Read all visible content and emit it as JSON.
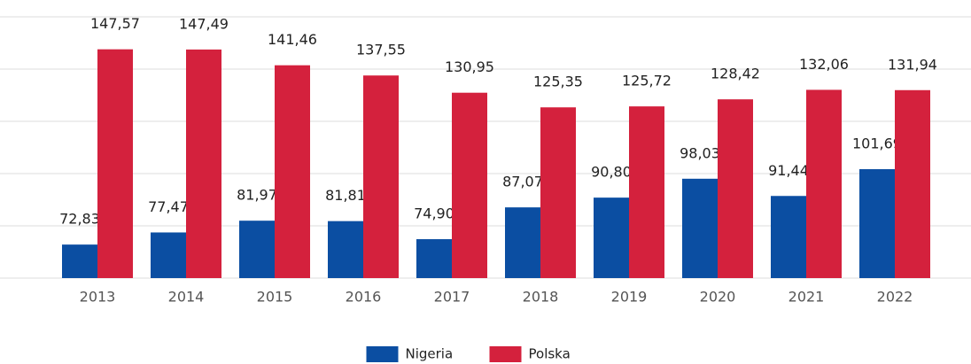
{
  "chart_data": {
    "type": "bar",
    "categories": [
      "2013",
      "2014",
      "2015",
      "2016",
      "2017",
      "2018",
      "2019",
      "2020",
      "2021",
      "2022"
    ],
    "series": [
      {
        "name": "Nigeria",
        "color": "#0b4ea2",
        "values": [
          72.83,
          77.47,
          81.97,
          81.81,
          74.9,
          87.07,
          90.8,
          98.03,
          91.44,
          101.69
        ],
        "value_labels": [
          "72,83",
          "77,47",
          "81,97",
          "81,81",
          "74,90",
          "87,07",
          "90,80",
          "98,03",
          "91,44",
          "101,69"
        ]
      },
      {
        "name": "Polska",
        "color": "#d4213d",
        "values": [
          147.57,
          147.49,
          141.46,
          137.55,
          130.95,
          125.35,
          125.72,
          128.42,
          132.06,
          131.94
        ],
        "value_labels": [
          "147,57",
          "147,49",
          "141,46",
          "137,55",
          "130,95",
          "125,35",
          "125,72",
          "128,42",
          "132,06",
          "131,94"
        ]
      }
    ],
    "ylim": [
      60,
      160
    ],
    "yticks": [
      60,
      80,
      100,
      120,
      140,
      160
    ],
    "grid": true,
    "legend": "bottom"
  }
}
